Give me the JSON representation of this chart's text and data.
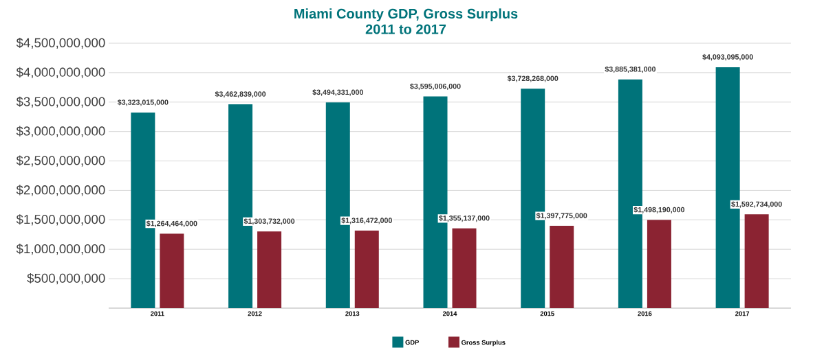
{
  "chart_data": {
    "type": "bar",
    "title": "Miami County GDP, Gross Surplus\n2011 to 2017",
    "categories": [
      "2011",
      "2012",
      "2013",
      "2014",
      "2015",
      "2016",
      "2017"
    ],
    "series": [
      {
        "name": "GDP",
        "color": "#00737a",
        "values": [
          3323015000,
          3462839000,
          3494331000,
          3595006000,
          3728268000,
          3885381000,
          4093095000
        ],
        "value_labels": [
          "$3,323,015,000",
          "$3,462,839,000",
          "$3,494,331,000",
          "$3,595,006,000",
          "$3,728,268,000",
          "$3,885,381,000",
          "$4,093,095,000"
        ]
      },
      {
        "name": "Gross Surplus",
        "color": "#8b2332",
        "values": [
          1264464000,
          1303732000,
          1316472000,
          1355137000,
          1397775000,
          1498190000,
          1592734000
        ],
        "value_labels": [
          "$1,264,464,000",
          "$1,303,732,000",
          "$1,316,472,000",
          "$1,355,137,000",
          "$1,397,775,000",
          "$1,498,190,000",
          "$1,592,734,000"
        ]
      }
    ],
    "ylim": [
      0,
      4500000000
    ],
    "yticks": [
      {
        "value": 0,
        "label": null
      },
      {
        "value": 500000000,
        "label": "$500,000,000"
      },
      {
        "value": 1000000000,
        "label": "$1,000,000,000"
      },
      {
        "value": 1500000000,
        "label": "$1,500,000,000"
      },
      {
        "value": 2000000000,
        "label": "$2,000,000,000"
      },
      {
        "value": 2500000000,
        "label": "$2,500,000,000"
      },
      {
        "value": 3000000000,
        "label": "$3,000,000,000"
      },
      {
        "value": 3500000000,
        "label": "$3,500,000,000"
      },
      {
        "value": 4000000000,
        "label": "$4,000,000,000"
      },
      {
        "value": 4500000000,
        "label": "$4,500,000,000"
      }
    ],
    "grid": "y",
    "legend": "bottom"
  }
}
